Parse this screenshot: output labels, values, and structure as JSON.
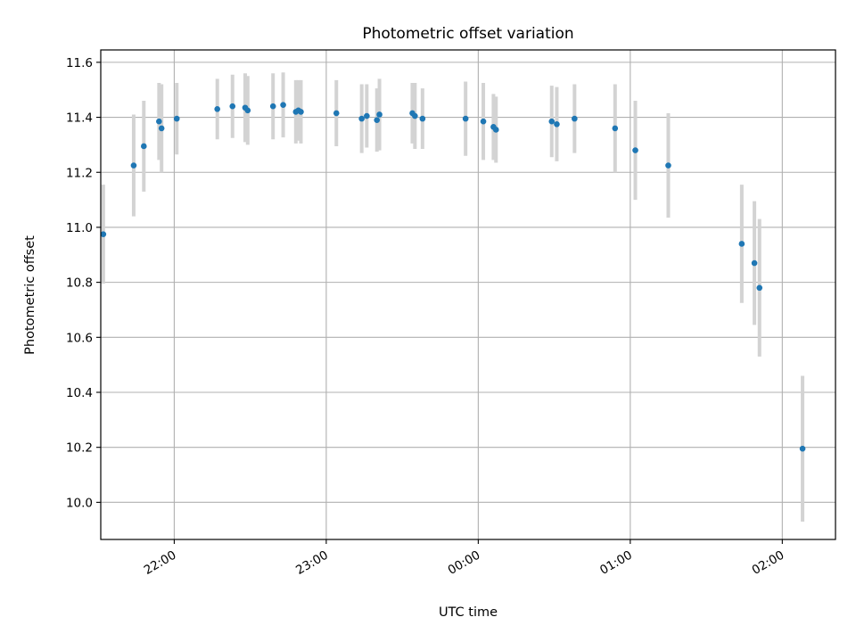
{
  "chart_data": {
    "type": "scatter",
    "title": "Photometric offset variation",
    "xlabel": "UTC time",
    "ylabel": "Photometric offset",
    "xlim": [
      "21:31",
      "02:21"
    ],
    "ylim": [
      9.865,
      11.645
    ],
    "x_ticks": [
      "22:00",
      "23:00",
      "00:00",
      "01:00",
      "02:00"
    ],
    "y_ticks": [
      "10.0",
      "10.2",
      "10.4",
      "10.6",
      "10.8",
      "11.0",
      "11.2",
      "11.4",
      "11.6"
    ],
    "grid": true,
    "series": [
      {
        "marker_color": "#1f77b4",
        "errorbar_color": "#d3d3d3",
        "points": [
          {
            "t": "21:32",
            "y": 10.975,
            "err": 0.18
          },
          {
            "t": "21:44",
            "y": 11.225,
            "err": 0.185
          },
          {
            "t": "21:48",
            "y": 11.295,
            "err": 0.165
          },
          {
            "t": "21:54",
            "y": 11.385,
            "err": 0.14
          },
          {
            "t": "21:55",
            "y": 11.36,
            "err": 0.16
          },
          {
            "t": "22:01",
            "y": 11.395,
            "err": 0.13
          },
          {
            "t": "22:17",
            "y": 11.43,
            "err": 0.11
          },
          {
            "t": "22:23",
            "y": 11.44,
            "err": 0.115
          },
          {
            "t": "22:28",
            "y": 11.435,
            "err": 0.125
          },
          {
            "t": "22:29",
            "y": 11.425,
            "err": 0.125
          },
          {
            "t": "22:39",
            "y": 11.44,
            "err": 0.12
          },
          {
            "t": "22:43",
            "y": 11.445,
            "err": 0.118
          },
          {
            "t": "22:48",
            "y": 11.42,
            "err": 0.115
          },
          {
            "t": "22:49",
            "y": 11.425,
            "err": 0.11
          },
          {
            "t": "22:50",
            "y": 11.42,
            "err": 0.115
          },
          {
            "t": "23:04",
            "y": 11.415,
            "err": 0.12
          },
          {
            "t": "23:14",
            "y": 11.395,
            "err": 0.125
          },
          {
            "t": "23:16",
            "y": 11.405,
            "err": 0.115
          },
          {
            "t": "23:20",
            "y": 11.39,
            "err": 0.115
          },
          {
            "t": "23:21",
            "y": 11.41,
            "err": 0.13
          },
          {
            "t": "23:34",
            "y": 11.415,
            "err": 0.11
          },
          {
            "t": "23:35",
            "y": 11.405,
            "err": 0.12
          },
          {
            "t": "23:38",
            "y": 11.395,
            "err": 0.11
          },
          {
            "t": "23:55",
            "y": 11.395,
            "err": 0.135
          },
          {
            "t": "00:02",
            "y": 11.385,
            "err": 0.14
          },
          {
            "t": "00:06",
            "y": 11.365,
            "err": 0.12
          },
          {
            "t": "00:07",
            "y": 11.355,
            "err": 0.12
          },
          {
            "t": "00:29",
            "y": 11.385,
            "err": 0.13
          },
          {
            "t": "00:31",
            "y": 11.375,
            "err": 0.135
          },
          {
            "t": "00:38",
            "y": 11.395,
            "err": 0.125
          },
          {
            "t": "00:54",
            "y": 11.36,
            "err": 0.16
          },
          {
            "t": "01:02",
            "y": 11.28,
            "err": 0.18
          },
          {
            "t": "01:15",
            "y": 11.225,
            "err": 0.19
          },
          {
            "t": "01:44",
            "y": 10.94,
            "err": 0.215
          },
          {
            "t": "01:49",
            "y": 10.87,
            "err": 0.225
          },
          {
            "t": "01:51",
            "y": 10.78,
            "err": 0.25
          },
          {
            "t": "02:08",
            "y": 10.195,
            "err": 0.265
          }
        ]
      }
    ]
  }
}
